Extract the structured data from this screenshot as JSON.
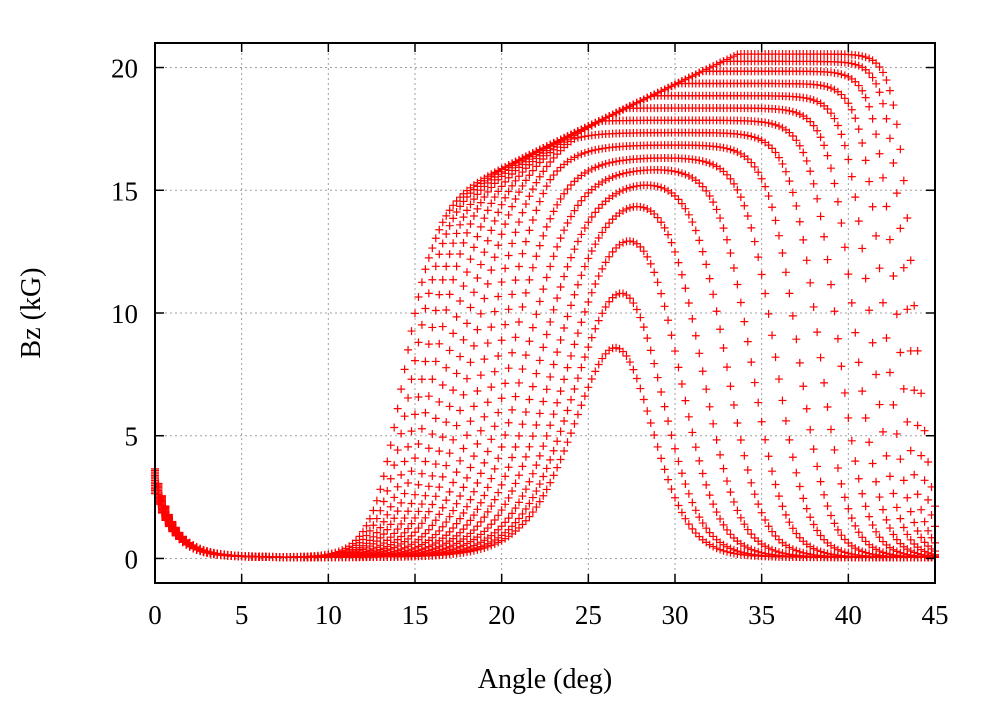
{
  "chart_data": {
    "type": "scatter",
    "title": "",
    "xlabel": "Angle (deg)",
    "ylabel": "Bz (kG)",
    "xlim": [
      0,
      45
    ],
    "ylim": [
      -1,
      21
    ],
    "xticks": [
      "0",
      "5",
      "10",
      "15",
      "20",
      "25",
      "30",
      "35",
      "40",
      "45"
    ],
    "yticks": [
      "0",
      "5",
      "10",
      "15",
      "20"
    ],
    "grid": true,
    "legend": "none",
    "marker": "+",
    "color": "#ff0000",
    "x_step_deg": 0.2,
    "model_note": "Family of field curves; each series described by rise angle, fall angle and peak field (kG)",
    "series": [
      {
        "name": "r01",
        "rise": 14.3,
        "fall": 43.8,
        "peak": 20.5
      },
      {
        "name": "r02",
        "rise": 14.8,
        "fall": 43.4,
        "peak": 20.2
      },
      {
        "name": "r03",
        "rise": 15.4,
        "fall": 42.8,
        "peak": 19.8
      },
      {
        "name": "r04",
        "rise": 16.0,
        "fall": 42.1,
        "peak": 19.3
      },
      {
        "name": "r05",
        "rise": 16.7,
        "fall": 41.3,
        "peak": 18.8
      },
      {
        "name": "r06",
        "rise": 17.4,
        "fall": 40.4,
        "peak": 18.3
      },
      {
        "name": "r07",
        "rise": 18.1,
        "fall": 39.4,
        "peak": 17.8
      },
      {
        "name": "r08",
        "rise": 18.9,
        "fall": 38.3,
        "peak": 17.3
      },
      {
        "name": "r09",
        "rise": 19.7,
        "fall": 37.1,
        "peak": 16.8
      },
      {
        "name": "r10",
        "rise": 20.5,
        "fall": 35.8,
        "peak": 16.3
      },
      {
        "name": "r11",
        "rise": 21.3,
        "fall": 34.4,
        "peak": 15.9
      },
      {
        "name": "r12",
        "rise": 22.1,
        "fall": 33.0,
        "peak": 15.5
      },
      {
        "name": "r13",
        "rise": 22.9,
        "fall": 31.6,
        "peak": 15.2
      },
      {
        "name": "r14",
        "rise": 23.7,
        "fall": 30.3,
        "peak": 15.0
      },
      {
        "name": "r15",
        "rise": 24.4,
        "fall": 29.1,
        "peak": 14.8
      },
      {
        "name": "r16",
        "rise": 25.0,
        "fall": 28.2,
        "peak": 14.7
      }
    ]
  }
}
